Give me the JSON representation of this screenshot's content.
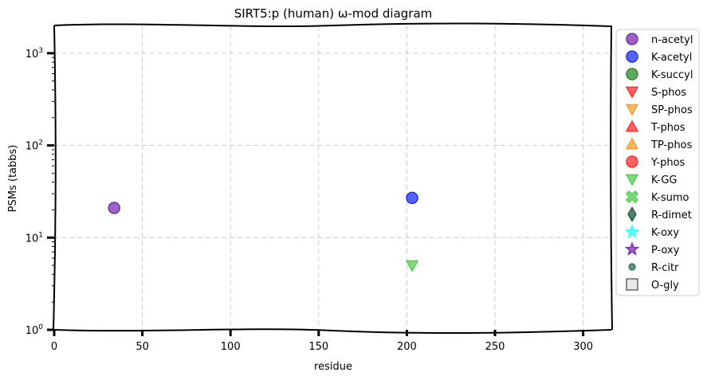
{
  "chart_data": {
    "type": "scatter",
    "title": "SIRT5:p (human) ω-mod diagram",
    "xlabel": "residue",
    "ylabel": "PSMs (tabbs)",
    "xlim": [
      0,
      316
    ],
    "ylim": [
      1,
      2000
    ],
    "yscale": "log",
    "grid": true,
    "legend_placement": "outside-right",
    "x_ticks": [
      "0",
      "50",
      "100",
      "150",
      "200",
      "250",
      "300"
    ],
    "x_tick_values": [
      0,
      50,
      100,
      150,
      200,
      250,
      300
    ],
    "y_tick_values": [
      1,
      10,
      100,
      1000
    ],
    "y_ticks": [
      {
        "base": "10",
        "exp": "0"
      },
      {
        "base": "10",
        "exp": "1"
      },
      {
        "base": "10",
        "exp": "2"
      },
      {
        "base": "10",
        "exp": "3"
      }
    ],
    "series": [
      {
        "name": "n-acetyl",
        "marker": "circle",
        "color": "#7b2fb0",
        "points": [
          {
            "x": 34,
            "y": 21
          }
        ]
      },
      {
        "name": "K-acetyl",
        "marker": "circle",
        "color": "#1f2fff",
        "points": [
          {
            "x": 203,
            "y": 27
          }
        ]
      },
      {
        "name": "K-succyl",
        "marker": "circle",
        "color": "#2a8a2a",
        "points": []
      },
      {
        "name": "S-phos",
        "marker": "triangle-down",
        "color": "#ff3030",
        "points": []
      },
      {
        "name": "SP-phos",
        "marker": "triangle-down",
        "color": "#f0a030",
        "points": []
      },
      {
        "name": "T-phos",
        "marker": "triangle-up",
        "color": "#ff3030",
        "points": []
      },
      {
        "name": "TP-phos",
        "marker": "triangle-up",
        "color": "#f0a030",
        "points": []
      },
      {
        "name": "Y-phos",
        "marker": "circle",
        "color": "#ff3030",
        "points": []
      },
      {
        "name": "K-GG",
        "marker": "triangle-down",
        "color": "#50d050",
        "points": [
          {
            "x": 203,
            "y": 5
          }
        ]
      },
      {
        "name": "K-sumo",
        "marker": "x",
        "color": "#50d050",
        "points": []
      },
      {
        "name": "R-dimet",
        "marker": "diamond",
        "color": "#1f5a3a",
        "points": []
      },
      {
        "name": "K-oxy",
        "marker": "star",
        "color": "#30ffff",
        "points": []
      },
      {
        "name": "P-oxy",
        "marker": "star",
        "color": "#7b2fb0",
        "points": []
      },
      {
        "name": "R-citr",
        "marker": "small-circle",
        "color": "#2f6f4f",
        "points": []
      },
      {
        "name": "O-gly",
        "marker": "square",
        "color": "#e8e8e8",
        "points": []
      }
    ]
  }
}
